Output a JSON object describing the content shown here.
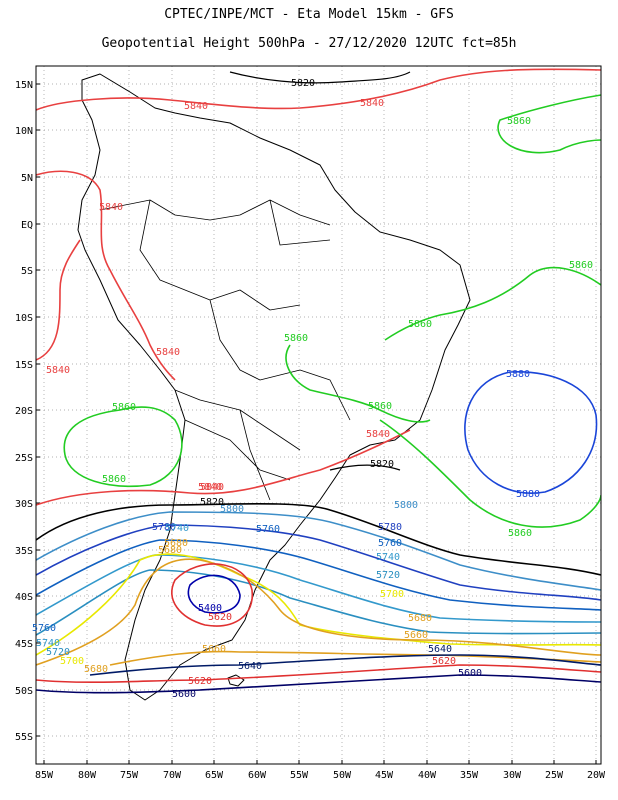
{
  "header": {
    "line1": "CPTEC/INPE/MCT -  Eta Model 15km - GFS",
    "line2": "Geopotential Height 500hPa - 27/12/2020 12UTC fct=85h"
  },
  "map": {
    "lat_ticks": [
      "15N",
      "10N",
      "5N",
      "EQ",
      "5S",
      "10S",
      "15S",
      "20S",
      "25S",
      "30S",
      "35S",
      "40S",
      "45S",
      "50S",
      "55S"
    ],
    "lon_ticks": [
      "85W",
      "80W",
      "75W",
      "70W",
      "65W",
      "60W",
      "55W",
      "50W",
      "45W",
      "40W",
      "35W",
      "30W",
      "25W",
      "20W"
    ],
    "grid": true,
    "colors": {
      "c5400": "#0000aa",
      "c5620": "#e03030",
      "c5660": "#e0a020",
      "c5700": "#e8e800",
      "c5720": "#2a8fc0",
      "c5740": "#3399cc",
      "c5760": "#1060c0",
      "c5780": "#2040c0",
      "c5800": "#3d8ec8",
      "c5820": "#000000",
      "c5840": "#e84040",
      "c5860": "#22cc22",
      "c5880": "#1a45d8",
      "c5640": "#001a66",
      "c5600": "#000066",
      "coast": "#000000"
    },
    "contour_labels": [
      {
        "text": "5820",
        "color": "c5820"
      },
      {
        "text": "5840",
        "color": "c5840"
      },
      {
        "text": "5840",
        "color": "c5840"
      },
      {
        "text": "5860",
        "color": "c5860"
      },
      {
        "text": "5840",
        "color": "c5840"
      },
      {
        "text": "5860",
        "color": "c5860"
      },
      {
        "text": "5840",
        "color": "c5840"
      },
      {
        "text": "5860",
        "color": "c5860"
      },
      {
        "text": "5840",
        "color": "c5840"
      },
      {
        "text": "5840",
        "color": "c5840"
      },
      {
        "text": "5860",
        "color": "c5860"
      },
      {
        "text": "5860",
        "color": "c5860"
      },
      {
        "text": "5880",
        "color": "c5880"
      },
      {
        "text": "5860",
        "color": "c5860"
      },
      {
        "text": "5860",
        "color": "c5860"
      },
      {
        "text": "5840",
        "color": "c5840"
      },
      {
        "text": "5820",
        "color": "c5820"
      },
      {
        "text": "5880",
        "color": "c5880"
      },
      {
        "text": "5860",
        "color": "c5860"
      },
      {
        "text": "5840",
        "color": "c5840"
      },
      {
        "text": "5820",
        "color": "c5820"
      },
      {
        "text": "5800",
        "color": "c5800"
      },
      {
        "text": "5800",
        "color": "c5800"
      },
      {
        "text": "5780",
        "color": "c5780"
      },
      {
        "text": "5780",
        "color": "c5780"
      },
      {
        "text": "5760",
        "color": "c5760"
      },
      {
        "text": "5740",
        "color": "c5740"
      },
      {
        "text": "5760",
        "color": "c5760"
      },
      {
        "text": "5740",
        "color": "c5740"
      },
      {
        "text": "5720",
        "color": "c5720"
      },
      {
        "text": "5700",
        "color": "c5700"
      },
      {
        "text": "5680",
        "color": "c5660"
      },
      {
        "text": "5680",
        "color": "c5660"
      },
      {
        "text": "5400",
        "color": "c5400"
      },
      {
        "text": "5620",
        "color": "c5620"
      },
      {
        "text": "5660",
        "color": "c5660"
      },
      {
        "text": "5660",
        "color": "c5660"
      },
      {
        "text": "5640",
        "color": "c5640"
      },
      {
        "text": "5640",
        "color": "c5640"
      },
      {
        "text": "5620",
        "color": "c5620"
      },
      {
        "text": "5620",
        "color": "c5620"
      },
      {
        "text": "5600",
        "color": "c5600"
      },
      {
        "text": "5600",
        "color": "c5600"
      },
      {
        "text": "5680",
        "color": "c5660"
      },
      {
        "text": "5760",
        "color": "c5760"
      },
      {
        "text": "5740",
        "color": "c5740"
      },
      {
        "text": "5720",
        "color": "c5720"
      },
      {
        "text": "5700",
        "color": "c5700"
      },
      {
        "text": "5680",
        "color": "c5660"
      }
    ]
  }
}
